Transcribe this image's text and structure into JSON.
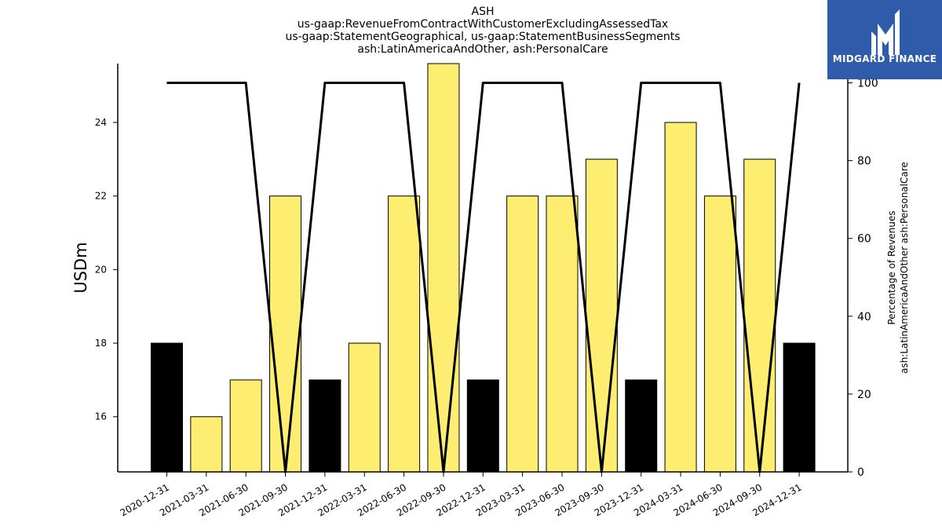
{
  "titles": {
    "line1": "ASH",
    "line2": "us-gaap:RevenueFromContractWithCustomerExcludingAssessedTax",
    "line3": "us-gaap:StatementGeographical, us-gaap:StatementBusinessSegments",
    "line4": "ash:LatinAmericaAndOther, ash:PersonalCare"
  },
  "logo": {
    "text": "MIDGARD FINANCE"
  },
  "colors": {
    "bar_highlight": "#000000",
    "bar_normal": "#fded70",
    "line": "#000000",
    "logo_bg": "#2f5bab"
  },
  "chart_data": {
    "type": "bar",
    "categories": [
      "2020-12-31",
      "2021-03-31",
      "2021-06-30",
      "2021-09-30",
      "2021-12-31",
      "2022-03-31",
      "2022-06-30",
      "2022-09-30",
      "2022-12-31",
      "2023-03-31",
      "2023-06-30",
      "2023-09-30",
      "2023-12-31",
      "2024-03-31",
      "2024-06-30",
      "2024-09-30",
      "2024-12-31"
    ],
    "series": [
      {
        "axis": "left",
        "type": "bar",
        "values": [
          18,
          16,
          17,
          22,
          17,
          18,
          22,
          26,
          17,
          22,
          22,
          23,
          17,
          24,
          22,
          23,
          18
        ],
        "highlight": [
          true,
          false,
          false,
          false,
          true,
          false,
          false,
          false,
          true,
          false,
          false,
          false,
          true,
          false,
          false,
          false,
          true
        ]
      },
      {
        "axis": "right",
        "type": "line",
        "values": [
          100,
          100,
          100,
          0,
          100,
          100,
          100,
          0,
          100,
          100,
          100,
          0,
          100,
          100,
          100,
          0,
          100
        ]
      }
    ],
    "ylabel": "USDm",
    "ylim": [
      14.5,
      25.6
    ],
    "yticks": [
      16,
      18,
      20,
      22,
      24
    ],
    "y2label_line1": "Percentage of Revenues",
    "y2label_line2": "ash:LatinAmericaAndOther ash:PersonalCare",
    "y2lim": [
      0,
      100
    ],
    "y2ticks": [
      0,
      20,
      40,
      60,
      80,
      100
    ],
    "grid": false,
    "legend": "none"
  }
}
